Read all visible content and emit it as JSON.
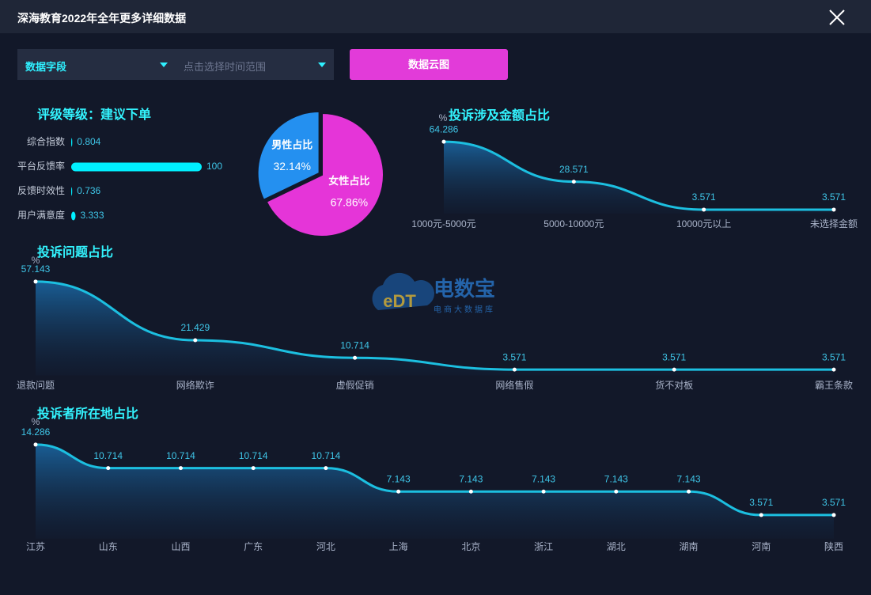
{
  "header": {
    "title": "深海教育2022年全年更多详细数据"
  },
  "controls": {
    "field_select": "数据字段",
    "time_range_placeholder": "点击选择时间范围",
    "button": "数据云图"
  },
  "watermark": {
    "logo": "eDT",
    "name": "电数宝",
    "tagline": "电商大数据库"
  },
  "chart_data": [
    {
      "type": "bar",
      "orientation": "horizontal",
      "title": "评级等级：建议下单",
      "categories": [
        "综合指数",
        "平台反馈率",
        "反馈时效性",
        "用户满意度"
      ],
      "values": [
        0.804,
        100,
        0.736,
        3.333
      ],
      "color": "#00f0ff"
    },
    {
      "type": "pie",
      "categories": [
        "男性占比",
        "女性占比"
      ],
      "values": [
        32.14,
        67.86
      ],
      "value_labels": [
        "32.14%",
        "67.86%"
      ],
      "colors": [
        "#2490f0",
        "#e535d8"
      ]
    },
    {
      "type": "area",
      "title": "投诉涉及金额占比",
      "y_label": "%",
      "categories": [
        "1000元-5000元",
        "5000-10000元",
        "10000元以上",
        "未选择金额"
      ],
      "values": [
        64.286,
        28.571,
        3.571,
        3.571
      ],
      "ylim": [
        0,
        70
      ],
      "color": "#1cbfe0"
    },
    {
      "type": "area",
      "title": "投诉问题占比",
      "y_label": "%",
      "categories": [
        "退款问题",
        "网络欺诈",
        "虚假促销",
        "网络售假",
        "货不对板",
        "霸王条款"
      ],
      "values": [
        57.143,
        21.429,
        10.714,
        3.571,
        3.571,
        3.571
      ],
      "ylim": [
        0,
        60
      ],
      "color": "#1cbfe0"
    },
    {
      "type": "area",
      "title": "投诉者所在地占比",
      "y_label": "%",
      "categories": [
        "江苏",
        "山东",
        "山西",
        "广东",
        "河北",
        "上海",
        "北京",
        "浙江",
        "湖北",
        "湖南",
        "河南",
        "陕西"
      ],
      "values": [
        14.286,
        10.714,
        10.714,
        10.714,
        10.714,
        7.143,
        7.143,
        7.143,
        7.143,
        7.143,
        3.571,
        3.571
      ],
      "ylim": [
        0,
        15
      ],
      "color": "#1cbfe0"
    }
  ]
}
